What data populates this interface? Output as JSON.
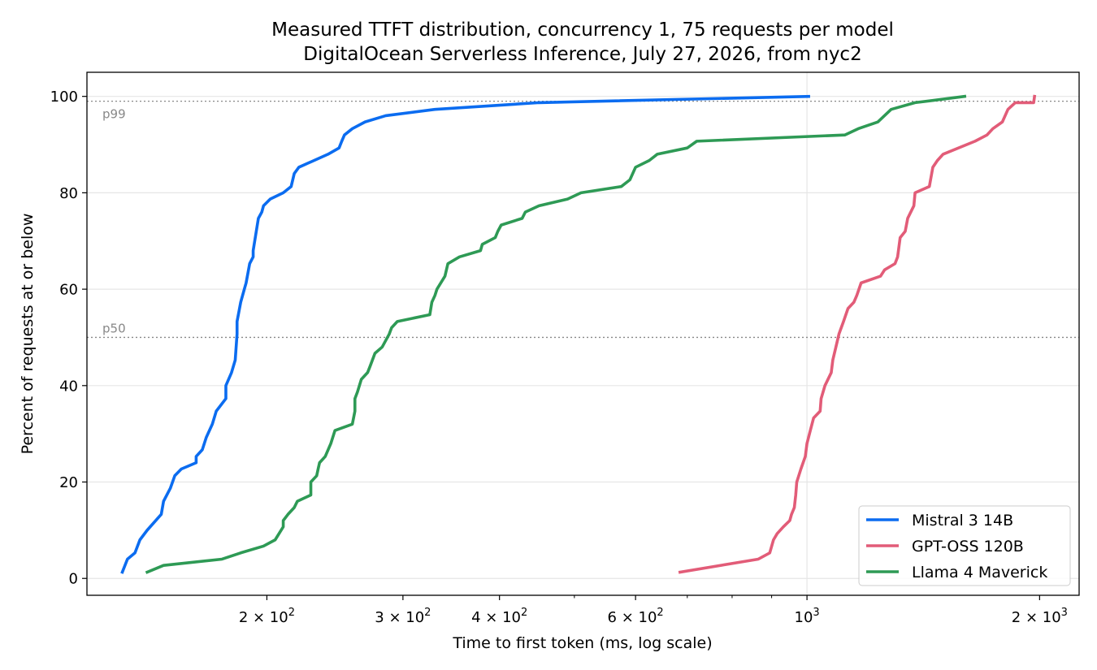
{
  "chart_data": {
    "type": "line",
    "title": "Measured TTFT distribution, concurrency 1, 75 requests per model",
    "subtitle": "DigitalOcean Serverless Inference, July 27, 2026, from nyc2",
    "xlabel": "Time to first token (ms, log scale)",
    "ylabel": "Percent of requests at or below",
    "x_scale": "log",
    "xlim": [
      117,
      2250
    ],
    "ylim": [
      -3.5,
      105
    ],
    "x_ticks": [
      {
        "value": 200,
        "label": "2 × 10²",
        "mantissa": "2 × 10",
        "exp": "2"
      },
      {
        "value": 300,
        "label": "3 × 10²",
        "mantissa": "3 × 10",
        "exp": "2"
      },
      {
        "value": 400,
        "label": "4 × 10²",
        "mantissa": "4 × 10",
        "exp": "2"
      },
      {
        "value": 600,
        "label": "6 × 10²",
        "mantissa": "6 × 10",
        "exp": "2"
      },
      {
        "value": 1000,
        "label": "10³",
        "mantissa": "10",
        "exp": "3"
      },
      {
        "value": 2000,
        "label": "2 × 10³",
        "mantissa": "2 × 10",
        "exp": "3"
      }
    ],
    "y_ticks": [
      {
        "value": 0,
        "label": "0"
      },
      {
        "value": 20,
        "label": "20"
      },
      {
        "value": 40,
        "label": "40"
      },
      {
        "value": 60,
        "label": "60"
      },
      {
        "value": 80,
        "label": "80"
      },
      {
        "value": 100,
        "label": "100"
      }
    ],
    "grid": true,
    "legend_position": "bottom-right",
    "reference_lines": [
      {
        "label": "p99",
        "y": 99
      },
      {
        "label": "p50",
        "y": 50
      }
    ],
    "series": [
      {
        "name": "Mistral 3 14B",
        "color": "#0b6cf0",
        "points": [
          [
            130,
            1.3
          ],
          [
            132,
            4
          ],
          [
            135,
            5.3
          ],
          [
            137,
            8
          ],
          [
            140,
            10
          ],
          [
            146,
            13.3
          ],
          [
            147,
            16
          ],
          [
            150,
            18.7
          ],
          [
            152,
            21.3
          ],
          [
            155,
            22.7
          ],
          [
            162,
            24
          ],
          [
            162,
            25.3
          ],
          [
            165,
            26.7
          ],
          [
            167,
            29.3
          ],
          [
            170,
            32
          ],
          [
            172,
            34.7
          ],
          [
            177,
            37.3
          ],
          [
            177,
            40
          ],
          [
            180,
            42.7
          ],
          [
            182,
            45.3
          ],
          [
            183,
            50.7
          ],
          [
            183,
            53.3
          ],
          [
            185,
            57.3
          ],
          [
            187,
            60
          ],
          [
            188,
            61.3
          ],
          [
            190,
            65.3
          ],
          [
            192,
            66.7
          ],
          [
            192,
            68
          ],
          [
            195,
            74.7
          ],
          [
            197,
            76
          ],
          [
            198,
            77.3
          ],
          [
            202,
            78.7
          ],
          [
            210,
            80
          ],
          [
            215,
            81.3
          ],
          [
            217,
            84
          ],
          [
            220,
            85.3
          ],
          [
            240,
            88
          ],
          [
            248,
            89.3
          ],
          [
            250,
            90.7
          ],
          [
            252,
            92
          ],
          [
            258,
            93.3
          ],
          [
            268,
            94.7
          ],
          [
            285,
            96
          ],
          [
            330,
            97.3
          ],
          [
            450,
            98.7
          ],
          [
            1005,
            100
          ]
        ]
      },
      {
        "name": "GPT-OSS 120B",
        "color": "#e25c78",
        "points": [
          [
            685,
            1.3
          ],
          [
            865,
            4
          ],
          [
            895,
            5.3
          ],
          [
            905,
            8
          ],
          [
            915,
            9.3
          ],
          [
            932,
            10.7
          ],
          [
            950,
            12
          ],
          [
            955,
            13.3
          ],
          [
            963,
            14.7
          ],
          [
            967,
            17.3
          ],
          [
            970,
            20
          ],
          [
            982,
            22.7
          ],
          [
            995,
            25.3
          ],
          [
            1000,
            28
          ],
          [
            1010,
            30.7
          ],
          [
            1020,
            33.3
          ],
          [
            1040,
            34.7
          ],
          [
            1043,
            37.3
          ],
          [
            1055,
            40
          ],
          [
            1075,
            42.7
          ],
          [
            1080,
            45.3
          ],
          [
            1090,
            48
          ],
          [
            1100,
            50.7
          ],
          [
            1115,
            53.3
          ],
          [
            1130,
            56
          ],
          [
            1150,
            57.3
          ],
          [
            1160,
            58.7
          ],
          [
            1175,
            61.3
          ],
          [
            1245,
            62.7
          ],
          [
            1260,
            64
          ],
          [
            1300,
            65.3
          ],
          [
            1310,
            66.7
          ],
          [
            1320,
            70.7
          ],
          [
            1340,
            72
          ],
          [
            1350,
            74.7
          ],
          [
            1375,
            77.3
          ],
          [
            1380,
            80
          ],
          [
            1440,
            81.3
          ],
          [
            1455,
            85.3
          ],
          [
            1475,
            86.7
          ],
          [
            1500,
            88
          ],
          [
            1650,
            90.7
          ],
          [
            1710,
            92
          ],
          [
            1740,
            93.3
          ],
          [
            1790,
            94.7
          ],
          [
            1820,
            97.3
          ],
          [
            1860,
            98.7
          ],
          [
            1965,
            98.7
          ],
          [
            1970,
            100
          ]
        ]
      },
      {
        "name": "Llama 4 Maverick",
        "color": "#2e9a55",
        "points": [
          [
            140,
            1.3
          ],
          [
            147,
            2.7
          ],
          [
            175,
            4
          ],
          [
            185,
            5.3
          ],
          [
            198,
            6.7
          ],
          [
            205,
            8
          ],
          [
            210,
            10.7
          ],
          [
            210,
            12
          ],
          [
            213,
            13.3
          ],
          [
            217,
            14.7
          ],
          [
            219,
            16
          ],
          [
            228,
            17.3
          ],
          [
            228,
            20
          ],
          [
            232,
            21.3
          ],
          [
            233,
            22.7
          ],
          [
            234,
            24
          ],
          [
            238,
            25.3
          ],
          [
            242,
            28
          ],
          [
            245,
            30.7
          ],
          [
            258,
            32
          ],
          [
            260,
            34.7
          ],
          [
            260,
            37.3
          ],
          [
            262,
            38.7
          ],
          [
            265,
            41.3
          ],
          [
            270,
            42.7
          ],
          [
            272,
            44
          ],
          [
            276,
            46.7
          ],
          [
            282,
            48
          ],
          [
            288,
            50.7
          ],
          [
            290,
            52
          ],
          [
            295,
            53.3
          ],
          [
            325,
            54.7
          ],
          [
            327,
            57.3
          ],
          [
            330,
            58.7
          ],
          [
            332,
            60
          ],
          [
            340,
            62.7
          ],
          [
            343,
            65.3
          ],
          [
            355,
            66.7
          ],
          [
            378,
            68
          ],
          [
            380,
            69.3
          ],
          [
            395,
            70.7
          ],
          [
            398,
            72
          ],
          [
            402,
            73.3
          ],
          [
            428,
            74.7
          ],
          [
            432,
            76
          ],
          [
            450,
            77.3
          ],
          [
            490,
            78.7
          ],
          [
            510,
            80
          ],
          [
            575,
            81.3
          ],
          [
            590,
            82.7
          ],
          [
            600,
            85.3
          ],
          [
            625,
            86.7
          ],
          [
            640,
            88
          ],
          [
            700,
            89.3
          ],
          [
            720,
            90.7
          ],
          [
            1120,
            92
          ],
          [
            1165,
            93.3
          ],
          [
            1235,
            94.7
          ],
          [
            1285,
            97.3
          ],
          [
            1380,
            98.7
          ],
          [
            1600,
            100
          ]
        ]
      }
    ]
  }
}
